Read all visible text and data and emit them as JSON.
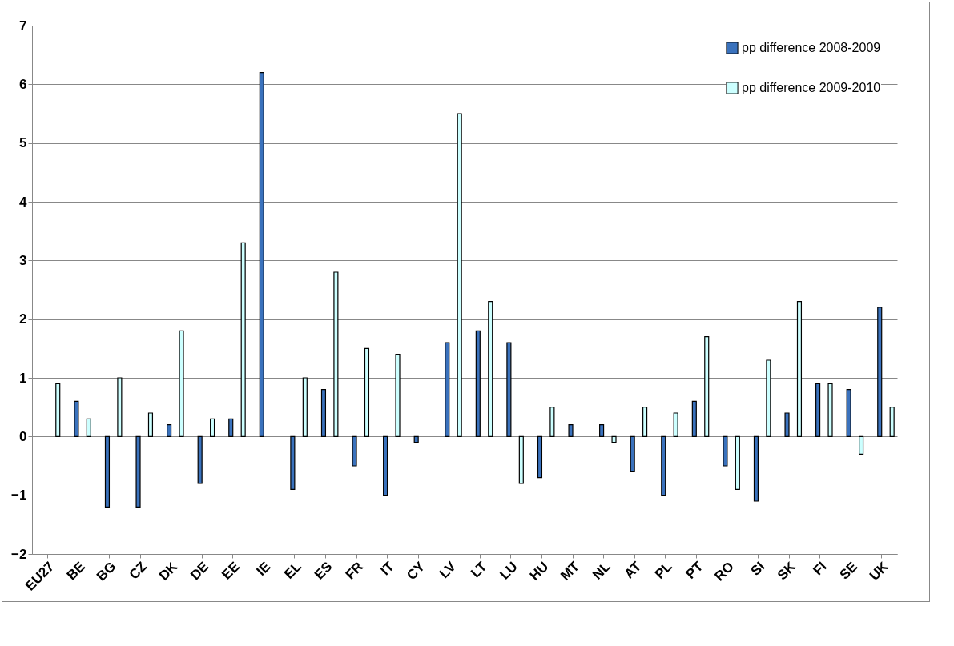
{
  "chart_data": {
    "type": "bar",
    "categories": [
      "EU27",
      "BE",
      "BG",
      "CZ",
      "DK",
      "DE",
      "EE",
      "IE",
      "EL",
      "ES",
      "FR",
      "IT",
      "CY",
      "LV",
      "LT",
      "LU",
      "HU",
      "MT",
      "NL",
      "AT",
      "PL",
      "PT",
      "RO",
      "SI",
      "SK",
      "FI",
      "SE",
      "UK"
    ],
    "series": [
      {
        "name": "pp difference 2008-2009",
        "color": "#3a72bd",
        "values": [
          null,
          0.6,
          -1.2,
          -1.2,
          0.2,
          -0.8,
          0.3,
          6.2,
          -0.9,
          0.8,
          -0.5,
          -1.0,
          -0.1,
          1.6,
          1.8,
          1.6,
          -0.7,
          0.2,
          0.2,
          -0.6,
          -1.0,
          0.6,
          -0.5,
          -1.1,
          0.4,
          0.9,
          0.8,
          2.2
        ]
      },
      {
        "name": "pp difference 2009-2010",
        "color": "#ccffff",
        "values": [
          0.9,
          0.3,
          1.0,
          0.4,
          1.8,
          0.3,
          3.3,
          null,
          1.0,
          2.8,
          1.5,
          1.4,
          null,
          5.5,
          2.3,
          -0.8,
          0.5,
          null,
          -0.1,
          0.5,
          0.4,
          1.7,
          -0.9,
          1.3,
          2.3,
          0.9,
          -0.3,
          0.5
        ]
      }
    ],
    "ylim": [
      -2,
      7
    ],
    "yticks": [
      -2,
      -1,
      0,
      1,
      2,
      3,
      4,
      5,
      6,
      7
    ],
    "grid": "y",
    "legend": "top right"
  }
}
